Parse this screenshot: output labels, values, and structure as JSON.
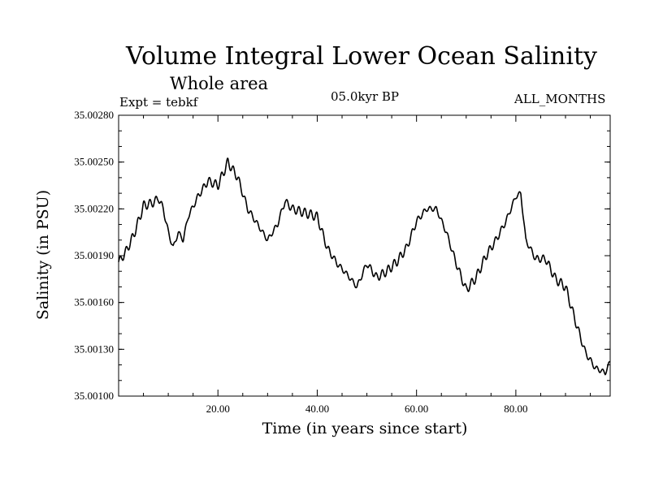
{
  "chart_data": {
    "type": "line",
    "title": "Volume Integral Lower Ocean Salinity",
    "subtitle": "Whole area",
    "annotations": {
      "experiment": "Expt = tebkf",
      "period": "05.0kyr BP",
      "months": "ALL_MONTHS"
    },
    "xlabel": "Time (in years since start)",
    "ylabel": "Salinity (in PSU)",
    "xlim": [
      0,
      99
    ],
    "ylim": [
      35.001,
      35.0028
    ],
    "x_ticks": [
      20,
      40,
      60,
      80
    ],
    "x_tick_labels": [
      "20.00",
      "40.00",
      "60.00",
      "80.00"
    ],
    "y_ticks": [
      35.001,
      35.0013,
      35.0016,
      35.0019,
      35.0022,
      35.0025,
      35.0028
    ],
    "y_tick_labels": [
      "35.00100",
      "35.00130",
      "35.00160",
      "35.00190",
      "35.00220",
      "35.00250",
      "35.00280"
    ],
    "grid": false,
    "series": [
      {
        "name": "Salinity",
        "color": "#000000",
        "oscillation_amplitude": 3e-05,
        "oscillation_period_years": 1.2,
        "x": [
          0,
          1,
          2,
          3,
          4,
          5,
          6,
          7,
          8,
          9,
          10,
          11,
          12,
          13,
          14,
          16,
          18,
          20,
          22,
          24,
          26,
          28,
          30,
          32,
          33.5,
          35,
          37,
          40,
          42,
          44,
          46,
          48,
          50,
          52,
          54,
          56,
          58,
          60,
          62,
          64,
          66,
          68,
          70,
          72,
          74,
          76,
          78,
          80,
          81,
          82,
          84,
          86,
          88,
          90,
          92,
          94,
          96,
          98,
          99
        ],
        "values": [
          35.00186,
          35.0019,
          35.00196,
          35.00203,
          35.00212,
          35.00222,
          35.00223,
          35.00224,
          35.00227,
          35.0022,
          35.00205,
          35.00195,
          35.00205,
          35.002,
          35.00215,
          35.00228,
          35.00238,
          35.00235,
          35.0025,
          35.0024,
          35.0022,
          35.0021,
          35.002,
          35.0021,
          35.00225,
          35.0022,
          35.00218,
          35.00215,
          35.00195,
          35.00185,
          35.00178,
          35.0017,
          35.00185,
          35.00176,
          35.0018,
          35.00186,
          35.00195,
          35.00212,
          35.0022,
          35.0022,
          35.00205,
          35.00185,
          35.00168,
          35.00176,
          35.0019,
          35.002,
          35.00212,
          35.00228,
          35.0023,
          35.002,
          35.00188,
          35.00188,
          35.00175,
          35.0017,
          35.00148,
          35.00128,
          35.00118,
          35.00115,
          35.00122
        ]
      }
    ]
  }
}
